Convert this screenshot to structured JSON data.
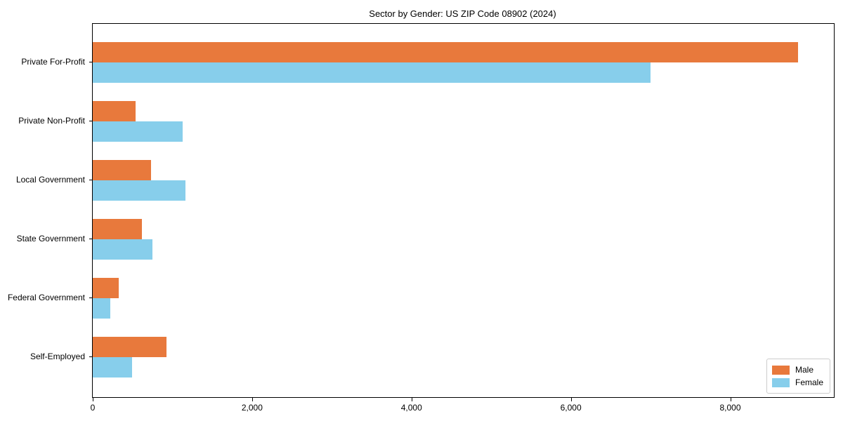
{
  "title": "Sector by Gender: US ZIP Code 08902 (2024)",
  "colors": {
    "male": "#e8793c",
    "female": "#87ceeb",
    "axis": "#000000",
    "background": "#ffffff",
    "legend_border": "#cccccc"
  },
  "chart_data": {
    "type": "bar",
    "orientation": "horizontal",
    "title": "Sector by Gender: US ZIP Code 08902 (2024)",
    "xlabel": "",
    "ylabel": "",
    "categories": [
      "Private For-Profit",
      "Private Non-Profit",
      "Local Government",
      "State Government",
      "Federal Government",
      "Self-Employed"
    ],
    "series": [
      {
        "name": "Male",
        "color": "#e8793c",
        "values": [
          8850,
          540,
          730,
          620,
          330,
          925
        ]
      },
      {
        "name": "Female",
        "color": "#87ceeb",
        "values": [
          7000,
          1130,
          1160,
          750,
          220,
          490
        ]
      }
    ],
    "xlim": [
      0,
      9300
    ],
    "xticks": [
      0,
      2000,
      4000,
      6000,
      8000
    ],
    "xtick_labels": [
      "0",
      "2,000",
      "4,000",
      "6,000",
      "8,000"
    ],
    "grid": false,
    "legend": {
      "position": "lower right",
      "entries": [
        "Male",
        "Female"
      ]
    }
  }
}
